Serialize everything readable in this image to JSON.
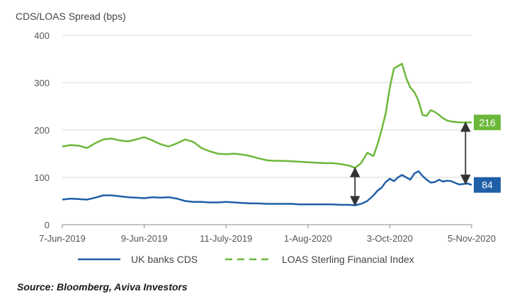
{
  "chart_data": {
    "type": "line",
    "ylabel": "CDS/LOAS Spread (bps)",
    "ylim": [
      0,
      400
    ],
    "yticks": [
      0,
      100,
      200,
      300,
      400
    ],
    "grid": "horizontal",
    "xticks": [
      "7-Jun-2019",
      "9-Jun-2019",
      "11-July-2019",
      "1-Aug-2020",
      "3-Oct-2020",
      "5-Nov-2020"
    ],
    "legend_position": "bottom",
    "colors": {
      "cds": "#1f5fa8",
      "loas": "#6cb83a",
      "arrow": "#333333"
    },
    "series": [
      {
        "name": "UK banks CDS",
        "style": "solid",
        "end_label": "84",
        "x": [
          0,
          0.02,
          0.04,
          0.06,
          0.08,
          0.1,
          0.12,
          0.14,
          0.16,
          0.18,
          0.2,
          0.22,
          0.24,
          0.26,
          0.28,
          0.3,
          0.32,
          0.34,
          0.36,
          0.38,
          0.4,
          0.42,
          0.44,
          0.46,
          0.48,
          0.5,
          0.52,
          0.54,
          0.56,
          0.58,
          0.6,
          0.62,
          0.64,
          0.66,
          0.68,
          0.7,
          0.715,
          0.73,
          0.745,
          0.76,
          0.77,
          0.78,
          0.79,
          0.8,
          0.81,
          0.82,
          0.83,
          0.84,
          0.85,
          0.86,
          0.87,
          0.88,
          0.89,
          0.9,
          0.91,
          0.92,
          0.93,
          0.94,
          0.95,
          0.96,
          0.97,
          0.98,
          0.99,
          1.0
        ],
        "values": [
          53,
          55,
          54,
          53,
          57,
          62,
          62,
          60,
          58,
          57,
          56,
          58,
          57,
          58,
          55,
          50,
          48,
          48,
          47,
          47,
          48,
          47,
          46,
          45,
          45,
          44,
          44,
          44,
          44,
          43,
          43,
          43,
          43,
          43,
          42,
          42,
          41,
          44,
          50,
          62,
          72,
          78,
          90,
          97,
          92,
          100,
          105,
          100,
          95,
          108,
          113,
          103,
          95,
          89,
          90,
          95,
          91,
          93,
          92,
          88,
          85,
          86,
          87,
          84
        ]
      },
      {
        "name": "LOAS Sterling Financial Index",
        "style": "dashed",
        "end_label": "216",
        "x": [
          0,
          0.02,
          0.04,
          0.06,
          0.08,
          0.1,
          0.12,
          0.14,
          0.16,
          0.18,
          0.2,
          0.22,
          0.24,
          0.26,
          0.28,
          0.3,
          0.32,
          0.34,
          0.36,
          0.38,
          0.4,
          0.42,
          0.44,
          0.46,
          0.48,
          0.5,
          0.52,
          0.54,
          0.56,
          0.58,
          0.6,
          0.62,
          0.64,
          0.66,
          0.68,
          0.7,
          0.715,
          0.73,
          0.745,
          0.76,
          0.77,
          0.78,
          0.79,
          0.8,
          0.81,
          0.82,
          0.83,
          0.84,
          0.85,
          0.86,
          0.87,
          0.88,
          0.89,
          0.9,
          0.91,
          0.92,
          0.93,
          0.94,
          0.95,
          0.96,
          0.97,
          0.98,
          0.99,
          1.0
        ],
        "values": [
          165,
          168,
          167,
          162,
          172,
          180,
          182,
          178,
          176,
          180,
          185,
          178,
          170,
          165,
          172,
          180,
          175,
          162,
          155,
          150,
          149,
          150,
          148,
          145,
          140,
          136,
          135,
          135,
          134,
          133,
          132,
          131,
          130,
          130,
          128,
          125,
          120,
          130,
          152,
          145,
          170,
          200,
          235,
          290,
          330,
          335,
          340,
          310,
          290,
          280,
          262,
          232,
          230,
          242,
          238,
          232,
          225,
          220,
          218,
          217,
          216,
          216,
          216,
          216
        ]
      }
    ],
    "annotation": "double arrows marking spread gap"
  },
  "source": "Source: Bloomberg, Aviva Investors"
}
